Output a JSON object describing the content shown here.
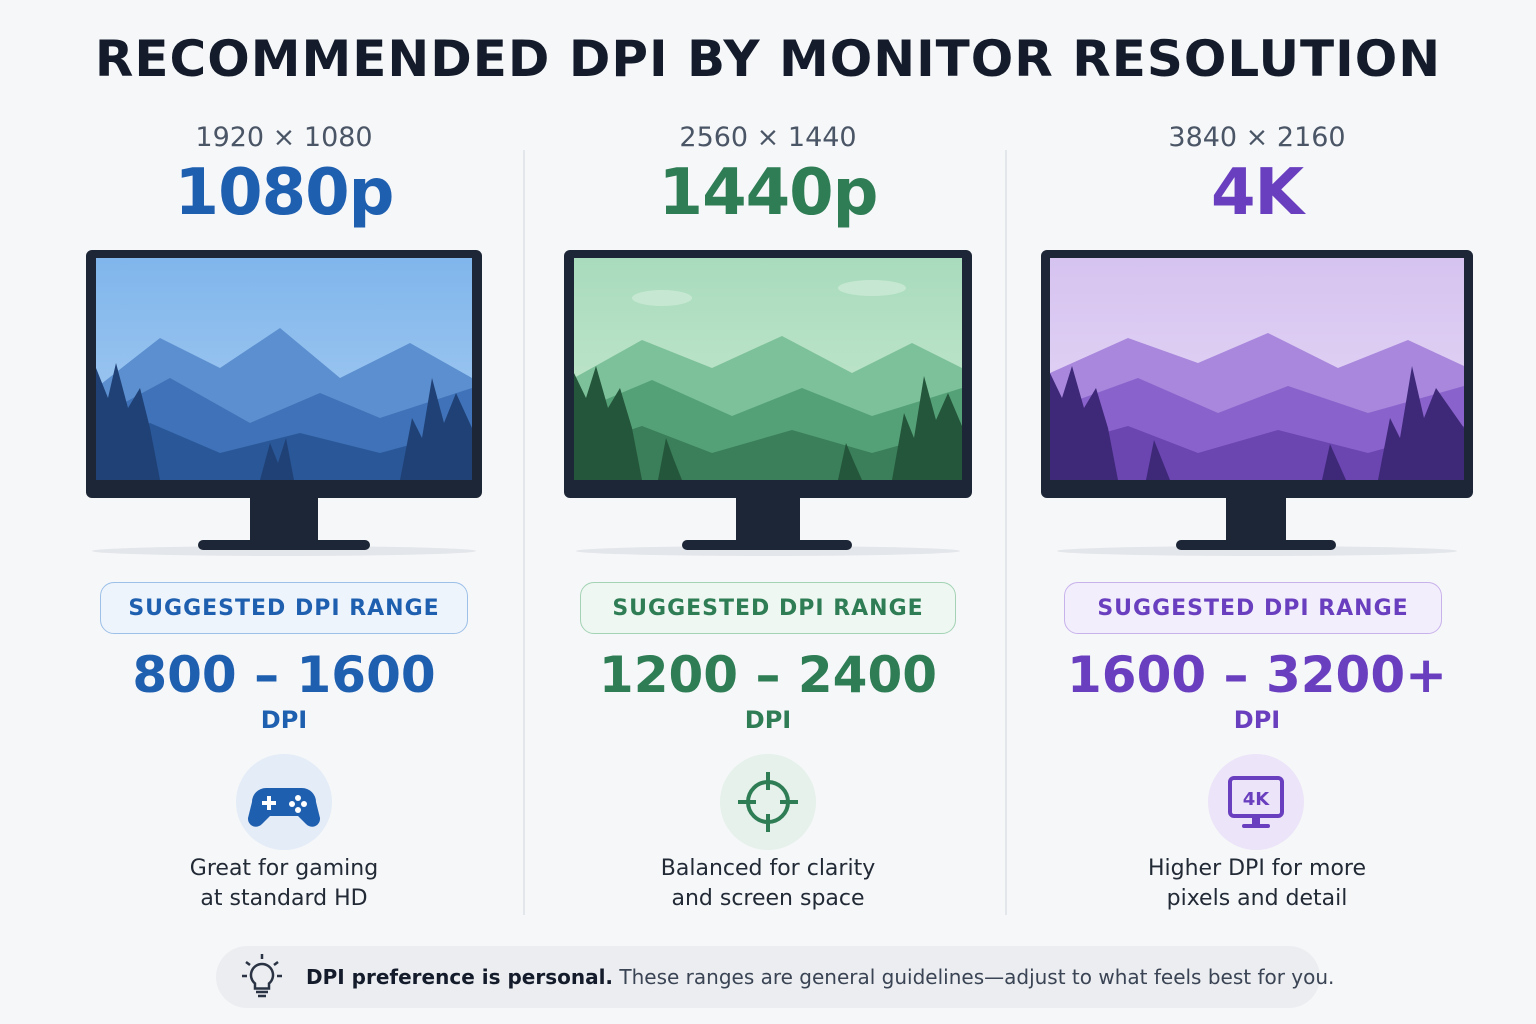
{
  "title": "RECOMMENDED DPI BY MONITOR RESOLUTION",
  "columns": [
    {
      "resolution": "1920 × 1080",
      "label": "1080p",
      "pill": "SUGGESTED DPI RANGE",
      "range": "800 – 1600",
      "unit": "DPI",
      "icon": "gamepad-icon",
      "desc_line1": "Great for gaming",
      "desc_line2": "at standard HD",
      "accent": "#1f5fb0"
    },
    {
      "resolution": "2560 × 1440",
      "label": "1440p",
      "pill": "SUGGESTED DPI RANGE",
      "range": "1200 – 2400",
      "unit": "DPI",
      "icon": "crosshair-icon",
      "desc_line1": "Balanced for clarity",
      "desc_line2": "and screen space",
      "accent": "#2e7d55"
    },
    {
      "resolution": "3840 × 2160",
      "label": "4K",
      "pill": "SUGGESTED DPI RANGE",
      "range": "1600 – 3200+",
      "unit": "DPI",
      "icon": "4k-monitor-icon",
      "icon_text": "4K",
      "desc_line1": "Higher DPI for more",
      "desc_line2": "pixels and detail",
      "accent": "#6a3fbf"
    }
  ],
  "note": {
    "icon": "lightbulb-icon",
    "bold": "DPI preference is personal.",
    "text": "These ranges are general guidelines—adjust to what feels best for you."
  }
}
